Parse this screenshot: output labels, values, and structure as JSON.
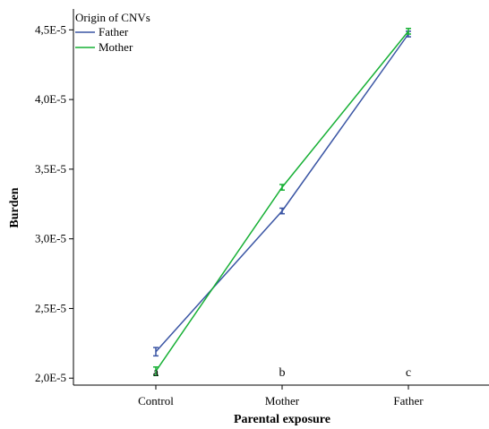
{
  "chart_data": {
    "type": "line",
    "title": "",
    "xlabel": "Parental exposure",
    "ylabel": "Burden",
    "categories": [
      "Control",
      "Mother",
      "Father"
    ],
    "ylim": [
      1.95e-05,
      4.65e-05
    ],
    "y_ticks": [
      2e-05,
      2.5e-05,
      3e-05,
      3.5e-05,
      4e-05,
      4.5e-05
    ],
    "y_tick_labels": [
      "2,0E-5",
      "2,5E-5",
      "3,0E-5",
      "3,5E-5",
      "4,0E-5",
      "4,5E-5"
    ],
    "legend": {
      "title": "Origin of CNVs",
      "placement": "top-left"
    },
    "series": [
      {
        "name": "Father",
        "color": "#3a55a4",
        "values": [
          2.19e-05,
          3.2e-05,
          4.47e-05
        ],
        "errors": [
          3e-07,
          2e-07,
          2e-07
        ]
      },
      {
        "name": "Mother",
        "color": "#17b035",
        "values": [
          2.05e-05,
          3.37e-05,
          4.49e-05
        ],
        "errors": [
          3e-07,
          2e-07,
          2e-07
        ]
      }
    ],
    "annotations": [
      "a",
      "b",
      "c"
    ],
    "grid": false
  }
}
